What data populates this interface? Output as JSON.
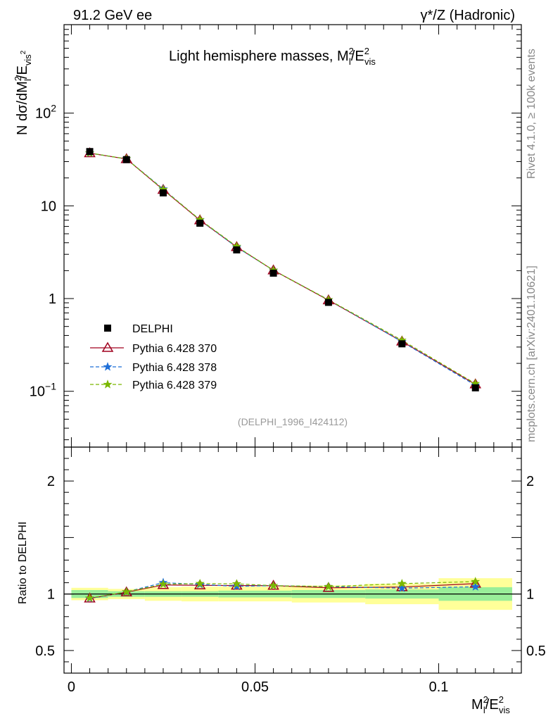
{
  "header": {
    "left": "91.2 GeV ee",
    "right": "γ*/Z (Hadronic)"
  },
  "side": {
    "rivet": "Rivet 4.1.0, ≥ 100k events",
    "mcplots": "mcplots.cern.ch [arXiv:2401.10621]"
  },
  "chart_data": [
    {
      "type": "scatter",
      "title": "Light hemisphere masses, M_l^2/E_vis^2",
      "ylabel": "N  dσ/dM_l^2/E_vis^2",
      "xlabel": "M_l^2/E_vis^2",
      "yscale": "log",
      "xlim": [
        -0.002,
        0.1225
      ],
      "ylim": [
        0.025,
        900
      ],
      "y_ticks": [
        "10^-1",
        "1",
        "10",
        "10^2"
      ],
      "x": [
        0.005,
        0.015,
        0.025,
        0.035,
        0.045,
        0.055,
        0.07,
        0.09,
        0.11
      ],
      "x_bins": [
        [
          0.0,
          0.01
        ],
        [
          0.01,
          0.02
        ],
        [
          0.02,
          0.03
        ],
        [
          0.03,
          0.04
        ],
        [
          0.04,
          0.05
        ],
        [
          0.05,
          0.06
        ],
        [
          0.06,
          0.08
        ],
        [
          0.08,
          0.1
        ],
        [
          0.1,
          0.12
        ]
      ],
      "series": [
        {
          "name": "DELPHI",
          "color": "#000000",
          "marker": "square",
          "values": [
            38.5,
            31.5,
            13.8,
            6.5,
            3.35,
            1.88,
            0.91,
            0.325,
            0.109
          ]
        },
        {
          "name": "Pythia 6.428 370",
          "color": "#a0001e",
          "marker": "triangle",
          "line": "solid",
          "values": [
            37.0,
            32.0,
            14.9,
            7.0,
            3.6,
            2.02,
            0.96,
            0.345,
            0.119
          ]
        },
        {
          "name": "Pythia 6.428 378",
          "color": "#1f6fd8",
          "marker": "star",
          "line": "dashed",
          "values": [
            37.0,
            32.1,
            15.2,
            7.05,
            3.58,
            2.02,
            0.97,
            0.342,
            0.116
          ]
        },
        {
          "name": "Pythia 6.428 379",
          "color": "#7ab800",
          "marker": "star",
          "line": "dashed",
          "values": [
            37.1,
            32.1,
            15.0,
            7.1,
            3.65,
            2.02,
            0.97,
            0.355,
            0.121
          ]
        }
      ],
      "annotation": "(DELPHI_1996_I424112)",
      "legend_position": "lower-left"
    },
    {
      "type": "line",
      "ylabel": "Ratio to DELPHI",
      "xlabel": "M_l^2/E_vis^2",
      "ylim": [
        0.3,
        2.3
      ],
      "y_ticks": [
        "0.5",
        "1",
        "2"
      ],
      "x_ticks": [
        "0",
        "0.05",
        "0.1"
      ],
      "xlim": [
        -0.002,
        0.1225
      ],
      "x": [
        0.005,
        0.015,
        0.025,
        0.035,
        0.045,
        0.055,
        0.07,
        0.09,
        0.11
      ],
      "band_stat": [
        0.035,
        0.025,
        0.025,
        0.025,
        0.03,
        0.03,
        0.035,
        0.04,
        0.06
      ],
      "band_total": [
        0.055,
        0.045,
        0.06,
        0.065,
        0.065,
        0.065,
        0.075,
        0.09,
        0.14
      ],
      "series": [
        {
          "name": "Pythia 6.428 370",
          "color": "#a0001e",
          "values": [
            0.961,
            1.016,
            1.08,
            1.077,
            1.075,
            1.074,
            1.055,
            1.062,
            1.092
          ]
        },
        {
          "name": "Pythia 6.428 378",
          "color": "#1f6fd8",
          "values": [
            0.961,
            1.019,
            1.101,
            1.085,
            1.068,
            1.074,
            1.066,
            1.052,
            1.064
          ]
        },
        {
          "name": "Pythia 6.428 379",
          "color": "#7ab800",
          "values": [
            0.964,
            1.019,
            1.087,
            1.092,
            1.09,
            1.074,
            1.066,
            1.092,
            1.11
          ]
        }
      ]
    }
  ]
}
